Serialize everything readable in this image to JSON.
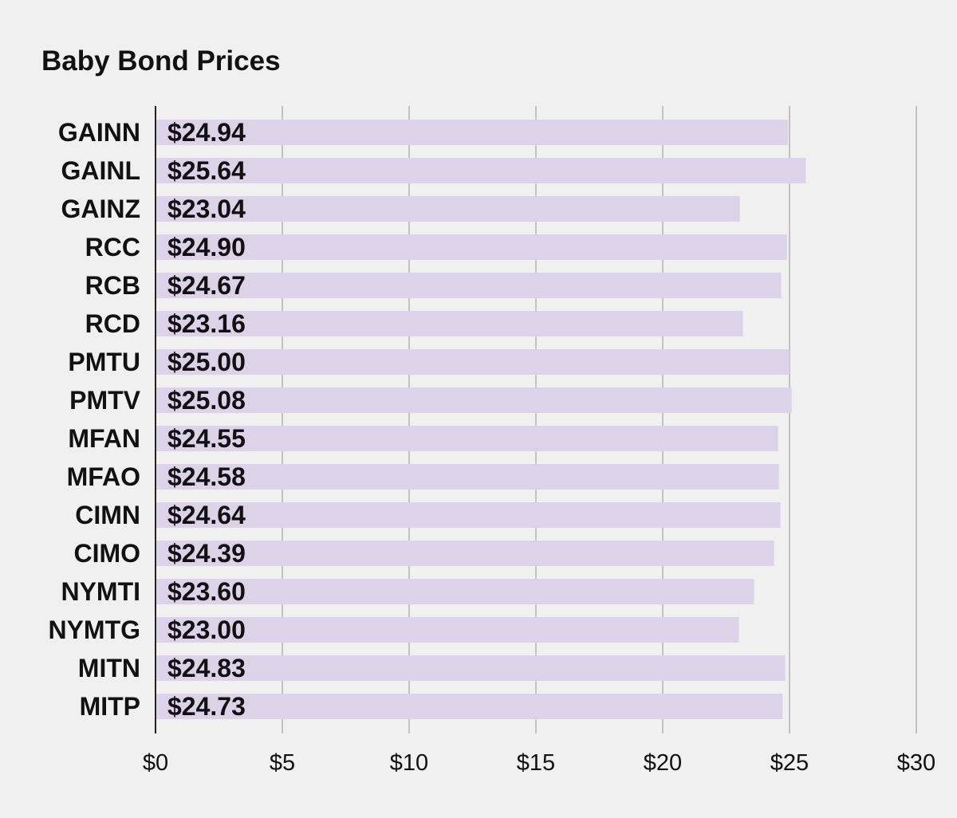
{
  "chart_data": {
    "type": "bar",
    "orientation": "horizontal",
    "title": "Baby Bond Prices",
    "xlabel": "",
    "ylabel": "",
    "categories": [
      "GAINN",
      "GAINL",
      "GAINZ",
      "RCC",
      "RCB",
      "RCD",
      "PMTU",
      "PMTV",
      "MFAN",
      "MFAO",
      "CIMN",
      "CIMO",
      "NYMTI",
      "NYMTG",
      "MITN",
      "MITP"
    ],
    "values": [
      24.94,
      25.64,
      23.04,
      24.9,
      24.67,
      23.16,
      25.0,
      25.08,
      24.55,
      24.58,
      24.64,
      24.39,
      23.6,
      23.0,
      24.83,
      24.73
    ],
    "value_labels": [
      "$24.94",
      "$25.64",
      "$23.04",
      "$24.90",
      "$24.67",
      "$23.16",
      "$25.00",
      "$25.08",
      "$24.55",
      "$24.58",
      "$24.64",
      "$24.39",
      "$23.60",
      "$23.00",
      "$24.83",
      "$24.73"
    ],
    "xlim": [
      0,
      30
    ],
    "x_ticks": [
      0,
      5,
      10,
      15,
      20,
      25,
      30
    ],
    "x_tick_labels": [
      "$0",
      "$5",
      "$10",
      "$15",
      "$20",
      "$25",
      "$30"
    ],
    "grid": true,
    "legend": "none",
    "bar_color": "#dcd3e9",
    "grid_color": "#b3b3b3",
    "axis_color": "#222222",
    "background": "#f0f0f0"
  }
}
